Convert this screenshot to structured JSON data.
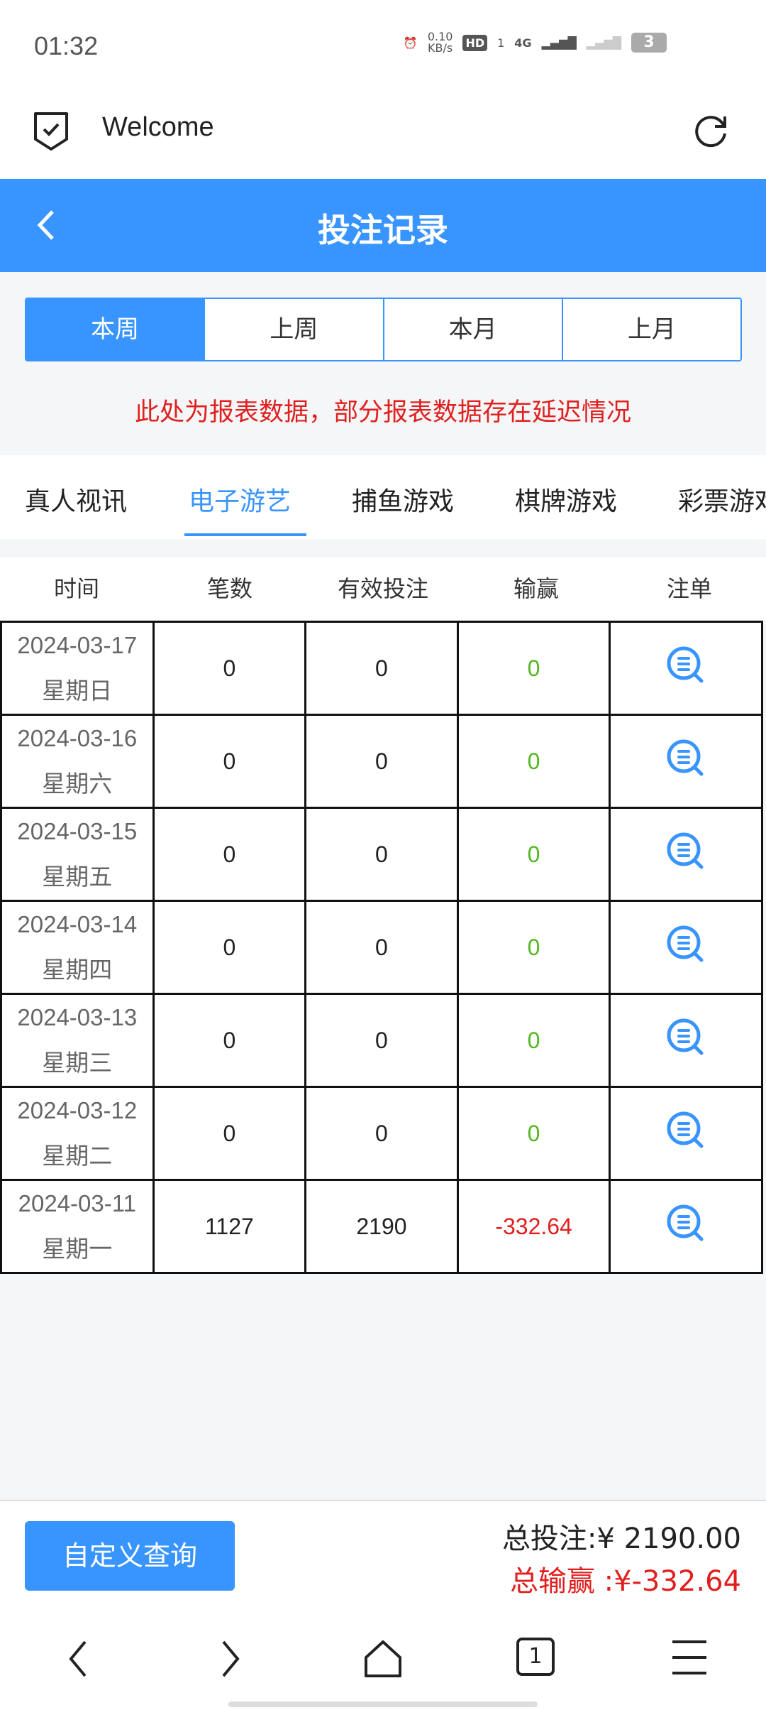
{
  "status": {
    "time": "01:32",
    "net_speed": "0.10",
    "net_unit": "KB/s",
    "hd": "HD",
    "sim": "1",
    "network": "4G",
    "battery": "3"
  },
  "topbar": {
    "title": "Welcome"
  },
  "navbar": {
    "title": "投注记录"
  },
  "periods": [
    "本周",
    "上周",
    "本月",
    "上月"
  ],
  "active_period": 0,
  "notice": "此处为报表数据，部分报表数据存在延迟情况",
  "tabs": [
    "真人视讯",
    "电子游艺",
    "捕鱼游戏",
    "棋牌游戏",
    "彩票游戏"
  ],
  "active_tab": 1,
  "table": {
    "headers": [
      "时间",
      "笔数",
      "有效投注",
      "输赢",
      "注单"
    ],
    "rows": [
      {
        "date": "2024-03-17",
        "weekday": "星期日",
        "count": "0",
        "valid": "0",
        "winloss": "0"
      },
      {
        "date": "2024-03-16",
        "weekday": "星期六",
        "count": "0",
        "valid": "0",
        "winloss": "0"
      },
      {
        "date": "2024-03-15",
        "weekday": "星期五",
        "count": "0",
        "valid": "0",
        "winloss": "0"
      },
      {
        "date": "2024-03-14",
        "weekday": "星期四",
        "count": "0",
        "valid": "0",
        "winloss": "0"
      },
      {
        "date": "2024-03-13",
        "weekday": "星期三",
        "count": "0",
        "valid": "0",
        "winloss": "0"
      },
      {
        "date": "2024-03-12",
        "weekday": "星期二",
        "count": "0",
        "valid": "0",
        "winloss": "0"
      },
      {
        "date": "2024-03-11",
        "weekday": "星期一",
        "count": "1127",
        "valid": "2190",
        "winloss": "-332.64"
      }
    ]
  },
  "footer": {
    "query_button": "自定义查询",
    "total_bet": "总投注:¥ 2190.00",
    "total_winloss": "总输赢 :¥-332.64"
  },
  "bottom_nav": {
    "tab_count": "1"
  },
  "colors": {
    "accent": "#3894ff",
    "positive": "#52b81e",
    "negative": "#e0201e"
  }
}
